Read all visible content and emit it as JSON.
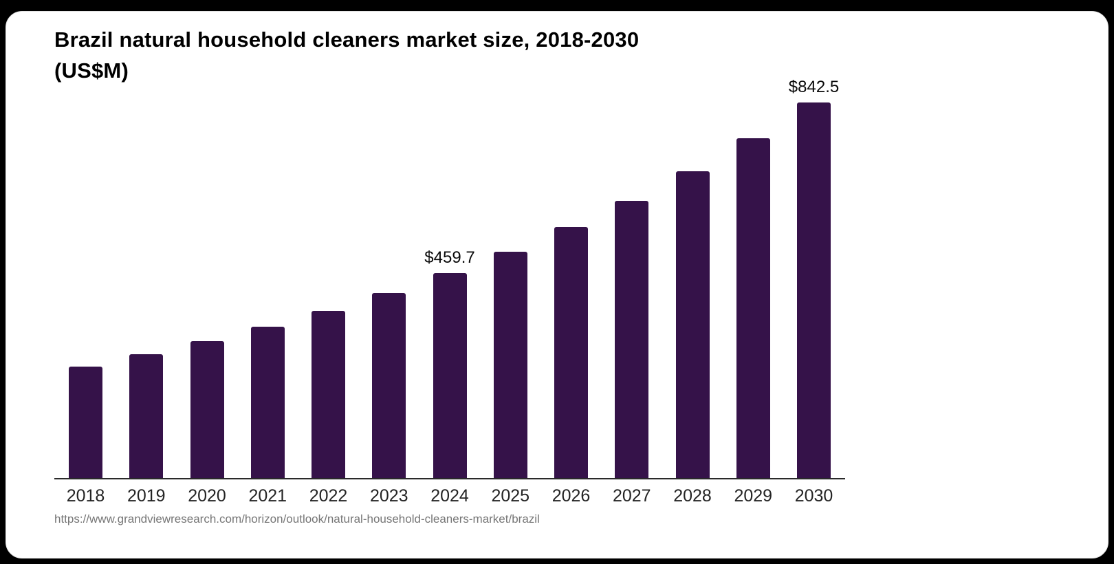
{
  "card": {
    "title_line1": "Brazil natural household cleaners market size, 2018-2030",
    "title_line2": "(US$M)",
    "source_url": "https://www.grandviewresearch.com/horizon/outlook/natural-household-cleaners-market/brazil"
  },
  "colors": {
    "bar": "#351249",
    "axis": "#2a2a2a",
    "title_text": "#000000",
    "tick_text": "#242424",
    "value_label_text": "#0a0a0a",
    "source_text": "#767676",
    "card_bg": "#ffffff",
    "page_bg": "#000000"
  },
  "chart_data": {
    "type": "bar",
    "title": "Brazil natural household cleaners market size, 2018-2030 (US$M)",
    "categories": [
      "2018",
      "2019",
      "2020",
      "2021",
      "2022",
      "2023",
      "2024",
      "2025",
      "2026",
      "2027",
      "2028",
      "2029",
      "2030"
    ],
    "values": [
      250.8,
      277.4,
      306.9,
      339.5,
      375.6,
      415.5,
      459.7,
      508.5,
      562.6,
      622.4,
      688.5,
      761.7,
      842.5
    ],
    "value_labels": [
      "",
      "",
      "",
      "",
      "",
      "",
      "$459.7",
      "",
      "",
      "",
      "",
      "",
      "$842.5"
    ],
    "xlabel": "",
    "ylabel": "",
    "ylim": [
      0,
      880
    ],
    "grid": false,
    "legend": "none",
    "y_axis_visible": false,
    "x_axis_visible": true,
    "bar_color": "#351249",
    "value_prefix": "$",
    "units": "US$M"
  }
}
